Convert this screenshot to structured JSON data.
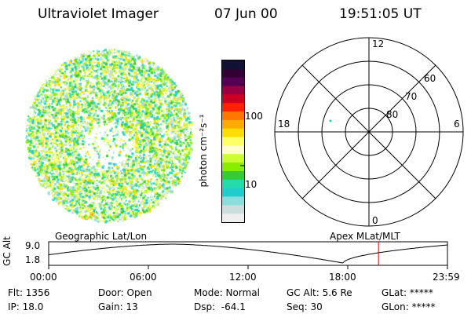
{
  "header": {
    "instrument": "Ultraviolet Imager",
    "date": "07 Jun 00",
    "time": "19:51:05 UT"
  },
  "colorbar": {
    "unit_label": "photon cm⁻²s⁻¹",
    "ticks": [
      {
        "value": 100,
        "label": "100"
      },
      {
        "value": 10,
        "label": "10"
      }
    ],
    "colors": [
      "#111133",
      "#330033",
      "#550055",
      "#990044",
      "#cc0022",
      "#ff2200",
      "#ff7700",
      "#ffaa00",
      "#ffdd00",
      "#ffff66",
      "#ffffcc",
      "#ccff33",
      "#88ee00",
      "#33cc33",
      "#22ddaa",
      "#22cccc",
      "#88dddd",
      "#ccdddd",
      "#eeeeee"
    ],
    "log_range": [
      0.3,
      2.3
    ]
  },
  "polar_plot": {
    "mlt_labels": {
      "top": "12",
      "bottom": "0",
      "left": "18",
      "right": "6"
    },
    "lat_labels": [
      "80",
      "70",
      "60"
    ],
    "lat_rings": [
      80,
      70,
      60,
      50
    ]
  },
  "timeline": {
    "left_title": "Geographic Lat/Lon",
    "right_title": "Apex  MLat/MLT",
    "axis_label": "GC Alt",
    "y_ticks": [
      "9.0",
      "1.8"
    ],
    "x_ticks": [
      "00:00",
      "06:00",
      "12:00",
      "18:00",
      "23:59"
    ],
    "marker_time": "19:51",
    "marker_color": "#cc0000",
    "curve_color": "#000000"
  },
  "info": {
    "row1": [
      {
        "key": "flt",
        "text": "Flt: 1356"
      },
      {
        "key": "door",
        "text": "Door: Open"
      },
      {
        "key": "mode",
        "text": "Mode: Normal"
      },
      {
        "key": "gcalt",
        "text": "GC Alt: 5.6 Re"
      },
      {
        "key": "glat",
        "text": "GLat: *****"
      }
    ],
    "row2": [
      {
        "key": "ip",
        "text": "IP: 18.0"
      },
      {
        "key": "gain",
        "text": "Gain: 13"
      },
      {
        "key": "dsp",
        "text": "Dsp:  -64.1"
      },
      {
        "key": "seq",
        "text": "Seq: 30"
      },
      {
        "key": "glon",
        "text": "GLon: *****"
      }
    ]
  }
}
